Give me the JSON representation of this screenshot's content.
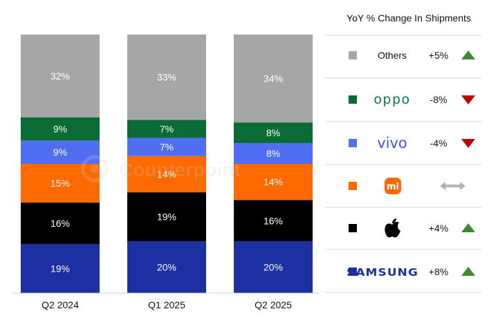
{
  "chart_data": {
    "type": "bar",
    "stacked": true,
    "percent": true,
    "categories": [
      "Q2 2024",
      "Q1 2025",
      "Q2 2025"
    ],
    "series": [
      {
        "name": "SAMSUNG",
        "color": "#1c2fa3",
        "values": [
          19,
          20,
          20
        ],
        "labels": [
          "19%",
          "20%",
          "20%"
        ],
        "label_color": "#ffffff"
      },
      {
        "name": "Apple",
        "color": "#000000",
        "values": [
          16,
          19,
          16
        ],
        "labels": [
          "16%",
          "19%",
          "16%"
        ],
        "label_color": "#ffffff"
      },
      {
        "name": "Xiaomi",
        "color": "#ff6a00",
        "values": [
          15,
          14,
          14
        ],
        "labels": [
          "15%",
          "14%",
          "14%"
        ],
        "label_color": "#ffffff"
      },
      {
        "name": "vivo",
        "color": "#4f6ef2",
        "values": [
          9,
          7,
          8
        ],
        "labels": [
          "9%",
          "7%",
          "8%"
        ],
        "label_color": "#ffffff"
      },
      {
        "name": "oppo",
        "color": "#0a6b35",
        "values": [
          9,
          7,
          8
        ],
        "labels": [
          "9%",
          "7%",
          "8%"
        ],
        "label_color": "#ffffff"
      },
      {
        "name": "Others",
        "color": "#a6a6a6",
        "values": [
          32,
          33,
          34
        ],
        "labels": [
          "32%",
          "33%",
          "34%"
        ],
        "label_color": "#ffffff"
      }
    ],
    "legend": {
      "title": "YoY % Change In Shipments",
      "placement": "right",
      "entries": [
        {
          "brand": "Others",
          "display": "Others",
          "display_type": "text",
          "swatch": "#a6a6a6",
          "change": "+5%",
          "trend": "up"
        },
        {
          "brand": "oppo",
          "display": "oppo",
          "display_type": "oppo-logo",
          "logo_color": "#0a7d3e",
          "swatch": "#0a6b35",
          "change": "-8%",
          "trend": "down"
        },
        {
          "brand": "vivo",
          "display": "vivo",
          "display_type": "vivo-logo",
          "logo_color": "#3f5bd9",
          "swatch": "#4f6ef2",
          "change": "-4%",
          "trend": "down"
        },
        {
          "brand": "Xiaomi",
          "display": "mi",
          "display_type": "xiaomi-logo",
          "logo_color": "#ff6a00",
          "swatch": "#ff6a00",
          "change": "",
          "trend": "flat"
        },
        {
          "brand": "Apple",
          "display": "",
          "display_type": "apple-logo",
          "logo_color": "#000000",
          "swatch": "#000000",
          "change": "+4%",
          "trend": "up"
        },
        {
          "brand": "SAMSUNG",
          "display": "SAMSUNG",
          "display_type": "samsung-logo",
          "logo_color": "#1c2fa3",
          "swatch": "#1c2fa3",
          "change": "+8%",
          "trend": "up"
        }
      ]
    },
    "trend_colors": {
      "up": "#3d8c2b",
      "down": "#c00000",
      "flat": "#b5b5b5"
    },
    "watermark": "Counterpoint",
    "xlabel": "",
    "ylabel": ""
  }
}
